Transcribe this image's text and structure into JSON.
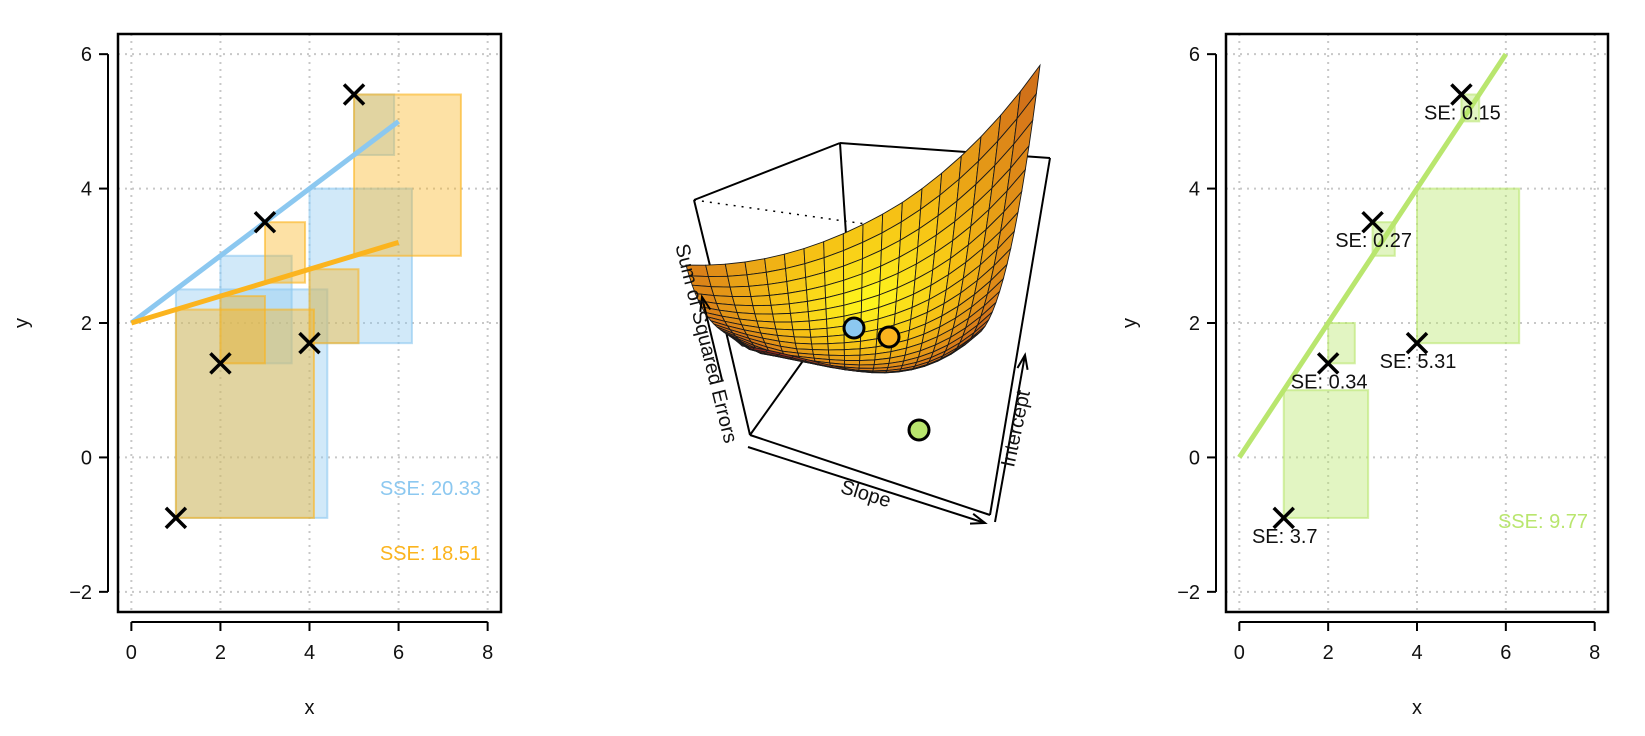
{
  "colors": {
    "blue": "#8cc8f0",
    "orange": "#fbb41e",
    "green": "#b9e66e",
    "black": "#000000",
    "gridline": "#c8c8c8"
  },
  "chart_data": [
    {
      "type": "scatter",
      "xlabel": "x",
      "ylabel": "y",
      "xlim": [
        -0.3,
        8.3
      ],
      "ylim": [
        -2.3,
        6.3
      ],
      "xticks": [
        0,
        2,
        4,
        6,
        8
      ],
      "yticks": [
        -2,
        0,
        2,
        4,
        6
      ],
      "grid": true,
      "points": [
        {
          "x": 1,
          "y": -0.9
        },
        {
          "x": 2,
          "y": 1.4
        },
        {
          "x": 3,
          "y": 3.5
        },
        {
          "x": 4,
          "y": 1.7
        },
        {
          "x": 5,
          "y": 5.4
        }
      ],
      "series": [
        {
          "color": "blue",
          "line": {
            "x": [
              0,
              6
            ],
            "y": [
              2,
              5
            ]
          },
          "sse_label": "SSE: 20.33"
        },
        {
          "color": "orange",
          "line": {
            "x": [
              0,
              6
            ],
            "y": [
              2,
              3.2
            ]
          },
          "sse_label": "SSE: 18.51"
        }
      ],
      "legend_position": "bottom-right"
    },
    {
      "type": "surface",
      "axis_labels": {
        "z": "Sum of Squared Errors",
        "x": "Slope",
        "y": "Intercept"
      },
      "markers": [
        {
          "color": "blue"
        },
        {
          "color": "orange"
        },
        {
          "color": "green"
        }
      ]
    },
    {
      "type": "scatter",
      "xlabel": "x",
      "ylabel": "y",
      "xlim": [
        -0.3,
        8.3
      ],
      "ylim": [
        -2.3,
        6.3
      ],
      "xticks": [
        0,
        2,
        4,
        6,
        8
      ],
      "yticks": [
        -2,
        0,
        2,
        4,
        6
      ],
      "grid": true,
      "points": [
        {
          "x": 1,
          "y": -0.9,
          "label": "SE: 3.7"
        },
        {
          "x": 2,
          "y": 1.4,
          "label": "SE: 0.34"
        },
        {
          "x": 3,
          "y": 3.5,
          "label": "SE: 0.27"
        },
        {
          "x": 4,
          "y": 1.7,
          "label": "SE: 5.31"
        },
        {
          "x": 5,
          "y": 5.4,
          "label": "SE: 0.15"
        }
      ],
      "series": [
        {
          "color": "green",
          "line": {
            "x": [
              0,
              6
            ],
            "y": [
              0,
              6
            ]
          },
          "sse_label": "SSE: 9.77"
        }
      ],
      "legend_position": "bottom-right"
    }
  ]
}
